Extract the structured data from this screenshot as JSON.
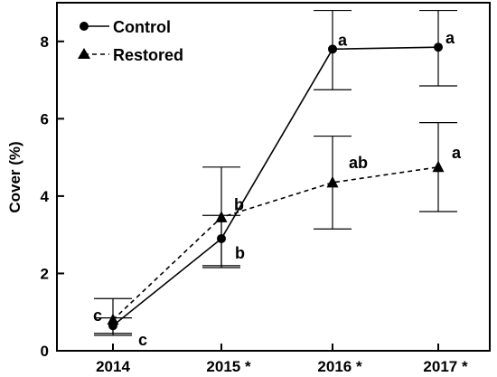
{
  "chart_data": {
    "type": "line",
    "ylabel": "Cover (%)",
    "xlabel": "",
    "ylim": [
      0,
      9
    ],
    "yticks": [
      0,
      2,
      4,
      6,
      8
    ],
    "categories": [
      "2014",
      "2015 *",
      "2016 *",
      "2017 *"
    ],
    "legend_position": "top-left",
    "series": [
      {
        "name": "Control",
        "marker": "circle",
        "line_style": "solid",
        "values": [
          0.65,
          2.9,
          7.8,
          7.85
        ],
        "error_low": [
          0.45,
          2.2,
          6.75,
          6.85
        ],
        "error_high": [
          0.85,
          3.5,
          8.8,
          8.8
        ],
        "significance": [
          "c",
          "b",
          "a",
          "a"
        ]
      },
      {
        "name": "Restored",
        "marker": "triangle",
        "line_style": "dashed",
        "values": [
          0.8,
          3.45,
          4.35,
          4.75
        ],
        "error_low": [
          0.4,
          2.15,
          3.15,
          3.6
        ],
        "error_high": [
          1.35,
          4.75,
          5.55,
          5.9
        ],
        "significance": [
          "c",
          "b",
          "ab",
          "a"
        ]
      }
    ]
  }
}
